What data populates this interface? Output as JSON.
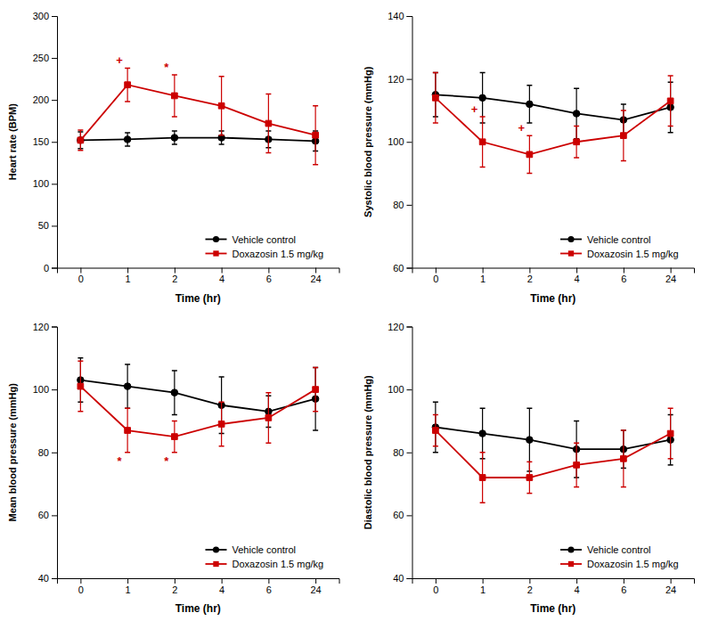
{
  "chart_data": [
    {
      "type": "line",
      "categories": [
        "0",
        "1",
        "2",
        "4",
        "6",
        "24"
      ],
      "xlabel": "Time (hr)",
      "ylabel": "Heart rate (BPM)",
      "ylim": [
        0,
        300
      ],
      "yticks": [
        0,
        50,
        100,
        150,
        200,
        250,
        300
      ],
      "legend": "lower right",
      "series": [
        {
          "name": "Vehicle control",
          "color": "#000000",
          "marker": "circle",
          "line_style": "solid",
          "values": [
            152,
            153,
            155,
            155,
            153,
            151
          ],
          "errors": [
            10,
            8,
            8,
            8,
            10,
            12
          ]
        },
        {
          "name": "Doxazosin 1.5 mg/kg",
          "color": "#cc0000",
          "marker": "square",
          "line_style": "solid",
          "values": [
            152,
            218,
            205,
            193,
            172,
            158
          ],
          "errors": [
            12,
            20,
            25,
            35,
            35,
            35
          ]
        }
      ],
      "annotations": [
        {
          "text": "+",
          "x": "1",
          "series": 1,
          "position": "above",
          "color": "#cc0000"
        },
        {
          "text": "*",
          "x": "2",
          "series": 1,
          "position": "above",
          "color": "#cc0000"
        }
      ]
    },
    {
      "type": "line",
      "categories": [
        "0",
        "1",
        "2",
        "4",
        "6",
        "24"
      ],
      "xlabel": "Time (hr)",
      "ylabel": "Systolic blood pressure (mmHg)",
      "ylim": [
        60,
        140
      ],
      "yticks": [
        60,
        80,
        100,
        120,
        140
      ],
      "legend": "lower right",
      "series": [
        {
          "name": "Vehicle control",
          "color": "#000000",
          "marker": "circle",
          "line_style": "solid",
          "values": [
            115,
            114,
            112,
            109,
            107,
            111
          ],
          "errors": [
            7,
            8,
            6,
            8,
            5,
            8
          ]
        },
        {
          "name": "Doxazosin 1.5 mg/kg",
          "color": "#cc0000",
          "marker": "square",
          "line_style": "solid",
          "values": [
            114,
            100,
            96,
            100,
            102,
            113
          ],
          "errors": [
            8,
            8,
            6,
            5,
            8,
            8
          ]
        }
      ],
      "annotations": [
        {
          "text": "+",
          "x": "1",
          "series": 1,
          "position": "above",
          "color": "#cc0000"
        },
        {
          "text": "+",
          "x": "2",
          "series": 1,
          "position": "above",
          "color": "#cc0000"
        }
      ]
    },
    {
      "type": "line",
      "categories": [
        "0",
        "1",
        "2",
        "4",
        "6",
        "24"
      ],
      "xlabel": "Time (hr)",
      "ylabel": "Mean blood pressure (mmHg)",
      "ylim": [
        40,
        120
      ],
      "yticks": [
        40,
        60,
        80,
        100,
        120
      ],
      "legend": "lower right",
      "series": [
        {
          "name": "Vehicle control",
          "color": "#000000",
          "marker": "circle",
          "line_style": "solid",
          "values": [
            103,
            101,
            99,
            95,
            93,
            97
          ],
          "errors": [
            7,
            7,
            7,
            9,
            5,
            10
          ]
        },
        {
          "name": "Doxazosin 1.5 mg/kg",
          "color": "#cc0000",
          "marker": "square",
          "line_style": "solid",
          "values": [
            101,
            87,
            85,
            89,
            91,
            100
          ],
          "errors": [
            8,
            7,
            5,
            7,
            8,
            7
          ]
        }
      ],
      "annotations": [
        {
          "text": "*",
          "x": "1",
          "series": 1,
          "position": "below",
          "color": "#cc0000"
        },
        {
          "text": "*",
          "x": "2",
          "series": 1,
          "position": "below",
          "color": "#cc0000"
        }
      ]
    },
    {
      "type": "line",
      "categories": [
        "0",
        "1",
        "2",
        "4",
        "6",
        "24"
      ],
      "xlabel": "Time (hr)",
      "ylabel": "Diastolic blood pressure (mmHg)",
      "ylim": [
        40,
        120
      ],
      "yticks": [
        40,
        60,
        80,
        100,
        120
      ],
      "legend": "lower right",
      "series": [
        {
          "name": "Vehicle control",
          "color": "#000000",
          "marker": "circle",
          "line_style": "solid",
          "values": [
            88,
            86,
            84,
            81,
            81,
            84
          ],
          "errors": [
            8,
            8,
            10,
            9,
            6,
            8
          ]
        },
        {
          "name": "Doxazosin 1.5 mg/kg",
          "color": "#cc0000",
          "marker": "square",
          "line_style": "solid",
          "values": [
            87,
            72,
            72,
            76,
            78,
            86
          ],
          "errors": [
            5,
            8,
            5,
            7,
            9,
            8
          ]
        }
      ]
    }
  ]
}
